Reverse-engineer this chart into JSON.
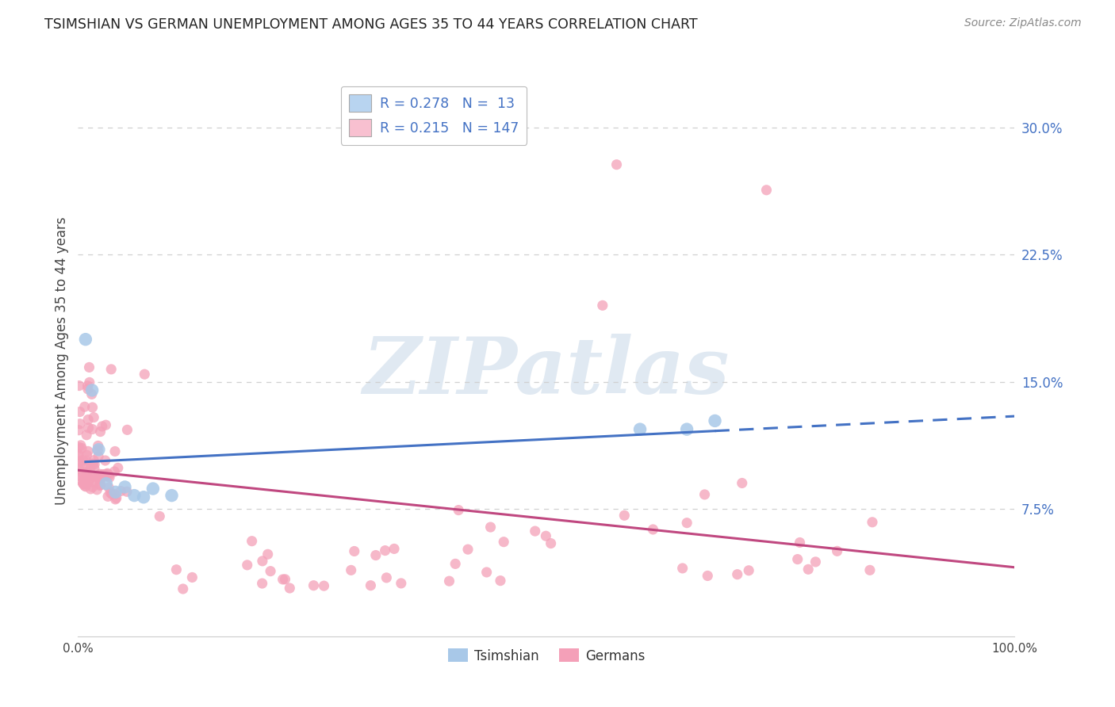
{
  "title": "TSIMSHIAN VS GERMAN UNEMPLOYMENT AMONG AGES 35 TO 44 YEARS CORRELATION CHART",
  "source": "Source: ZipAtlas.com",
  "ylabel": "Unemployment Among Ages 35 to 44 years",
  "legend_labels": [
    "Tsimshian",
    "Germans"
  ],
  "tsimshian_R": 0.278,
  "tsimshian_N": 13,
  "german_R": 0.215,
  "german_N": 147,
  "blue_scatter_color": "#a8c8e8",
  "blue_line_color": "#4472c4",
  "pink_scatter_color": "#f4a0b8",
  "pink_line_color": "#c04880",
  "legend_box_blue": "#b8d4f0",
  "legend_box_pink": "#f8c0d0",
  "background_color": "#ffffff",
  "grid_color": "#d0d0d0",
  "watermark_text": "ZIPatlas",
  "xlim": [
    0.0,
    1.0
  ],
  "ylim": [
    0.0,
    0.325
  ],
  "ytick_vals": [
    0.075,
    0.15,
    0.225,
    0.3
  ],
  "ytick_labels": [
    "7.5%",
    "15.0%",
    "22.5%",
    "30.0%"
  ],
  "tsimshian_x": [
    0.008,
    0.015,
    0.022,
    0.03,
    0.04,
    0.05,
    0.06,
    0.07,
    0.08,
    0.1,
    0.6,
    0.65,
    0.68
  ],
  "tsimshian_y": [
    0.175,
    0.145,
    0.11,
    0.09,
    0.085,
    0.088,
    0.083,
    0.082,
    0.087,
    0.083,
    0.122,
    0.122,
    0.127
  ]
}
